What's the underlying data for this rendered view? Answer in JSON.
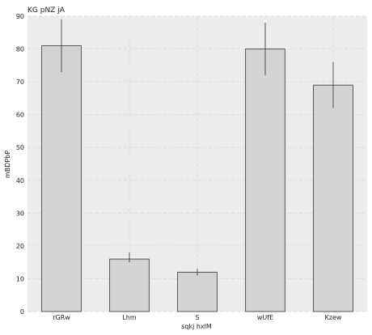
{
  "chart_data": {
    "type": "bar",
    "title": "KG pNZ jA",
    "xlabel": "sqkj hxlM",
    "ylabel": "mBDPbP",
    "categories": [
      "rGRw",
      "Lhm",
      "S",
      "wUfE",
      "Kzew"
    ],
    "values": [
      81,
      16,
      12,
      80,
      69
    ],
    "errors_upper": [
      89,
      18,
      13,
      88,
      76
    ],
    "errors_lower": [
      73,
      15,
      11,
      72,
      62
    ],
    "ylim": [
      0,
      90
    ],
    "yticks": [
      0,
      10,
      20,
      30,
      40,
      50,
      60,
      70,
      80,
      90
    ],
    "grid": true,
    "colors": {
      "bar_fill": "#d3d3d3",
      "bar_stroke": "#333333",
      "plot_bg": "#ececec",
      "grid": "#dcdcdc",
      "error": "#333333"
    }
  }
}
